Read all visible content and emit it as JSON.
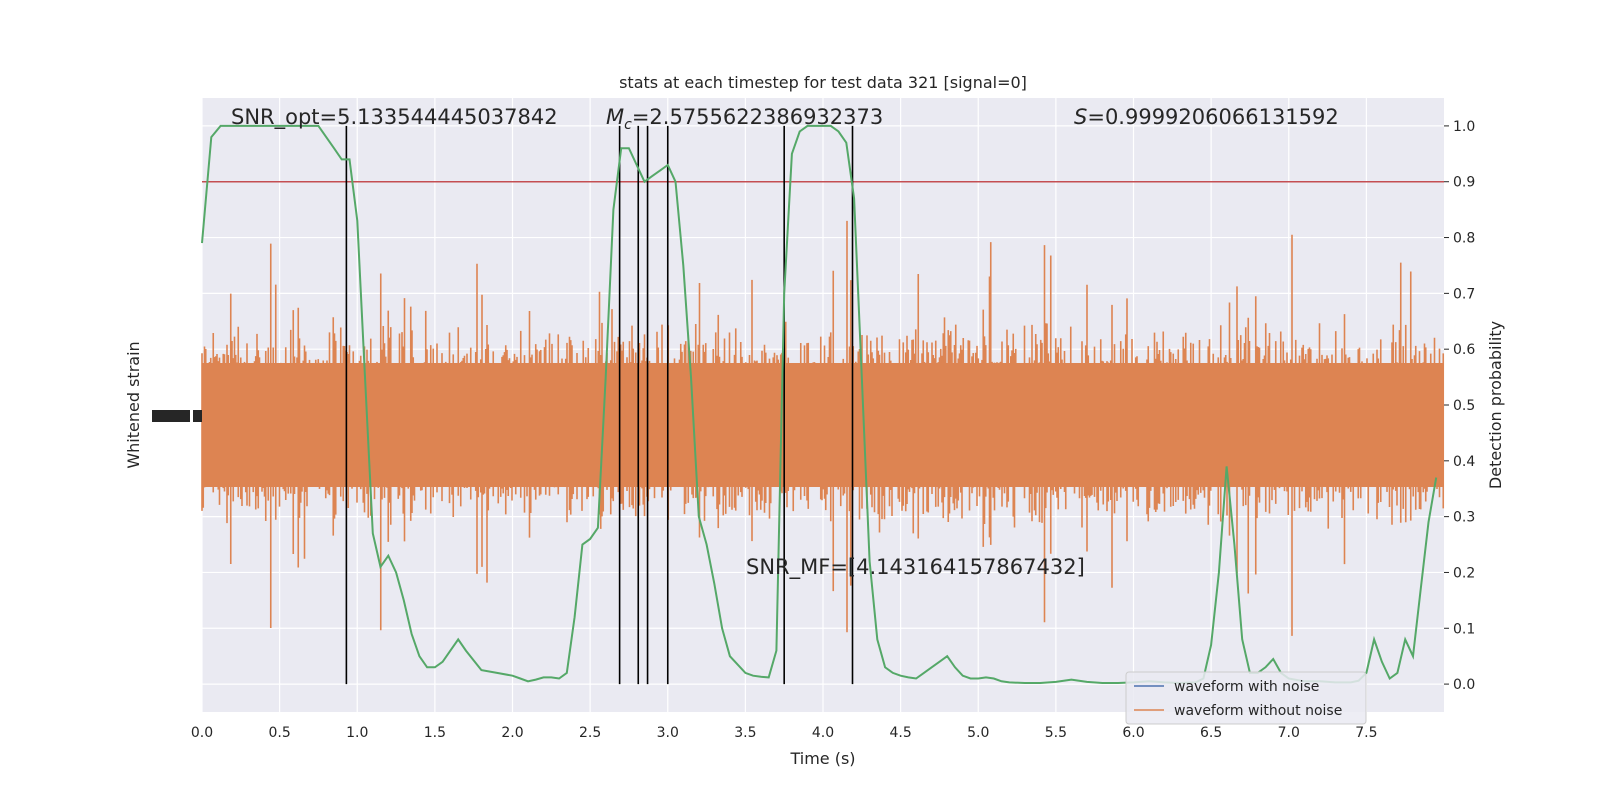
{
  "chart_data": {
    "type": "line",
    "title": "stats at each timestep for test data 321 [signal=0]",
    "xlabel": "Time (s)",
    "ylabel_left": "Whitened strain",
    "ylabel_right": "Detection probability",
    "xlim": [
      0,
      8
    ],
    "ylim_right": [
      -0.05,
      1.05
    ],
    "x_ticks": [
      "0.0",
      "0.5",
      "1.0",
      "1.5",
      "2.0",
      "2.5",
      "3.0",
      "3.5",
      "4.0",
      "4.5",
      "5.0",
      "5.5",
      "6.0",
      "6.5",
      "7.0",
      "7.5"
    ],
    "y_ticks_right": [
      "0.0",
      "0.1",
      "0.2",
      "0.3",
      "0.4",
      "0.5",
      "0.6",
      "0.7",
      "0.8",
      "0.9",
      "1.0"
    ],
    "grid": true,
    "annotations": {
      "snr_opt": "SNR_opt=5.133544445037842",
      "mc_symbol": "M",
      "mc_sub": "c",
      "mc_value": "=2.5755622386932373",
      "s_symbol": "S",
      "s_value": "=0.9999206066131592",
      "snr_mf": "SNR_MF=[4.143164157867432]"
    },
    "threshold": 0.9,
    "vertical_lines_s": [
      0.93,
      2.69,
      2.81,
      2.87,
      3.0,
      3.75,
      4.19
    ],
    "series": [
      {
        "name": "waveform with noise",
        "color": "#4c72b0"
      },
      {
        "name": "waveform without noise",
        "color": "#dd8452"
      }
    ],
    "detection_probability": {
      "color": "#55a868",
      "x": [
        0.0,
        0.06,
        0.12,
        0.2,
        0.3,
        0.45,
        0.6,
        0.75,
        0.8,
        0.85,
        0.9,
        0.95,
        1.0,
        1.05,
        1.1,
        1.15,
        1.2,
        1.25,
        1.3,
        1.35,
        1.4,
        1.45,
        1.5,
        1.55,
        1.6,
        1.65,
        1.7,
        1.8,
        1.9,
        2.0,
        2.05,
        2.1,
        2.15,
        2.2,
        2.25,
        2.3,
        2.35,
        2.4,
        2.45,
        2.5,
        2.55,
        2.6,
        2.65,
        2.7,
        2.75,
        2.8,
        2.85,
        2.9,
        2.95,
        3.0,
        3.05,
        3.1,
        3.15,
        3.2,
        3.25,
        3.3,
        3.35,
        3.4,
        3.5,
        3.55,
        3.6,
        3.65,
        3.7,
        3.75,
        3.8,
        3.85,
        3.9,
        3.95,
        4.0,
        4.05,
        4.1,
        4.15,
        4.2,
        4.25,
        4.3,
        4.35,
        4.4,
        4.45,
        4.5,
        4.55,
        4.6,
        4.65,
        4.7,
        4.75,
        4.8,
        4.85,
        4.9,
        4.95,
        5.0,
        5.05,
        5.1,
        5.15,
        5.2,
        5.3,
        5.4,
        5.5,
        5.6,
        5.7,
        5.8,
        5.9,
        6.0,
        6.1,
        6.2,
        6.3,
        6.4,
        6.45,
        6.5,
        6.55,
        6.6,
        6.65,
        6.7,
        6.75,
        6.8,
        6.85,
        6.9,
        6.95,
        7.0,
        7.1,
        7.2,
        7.3,
        7.4,
        7.45,
        7.5,
        7.55,
        7.6,
        7.65,
        7.7,
        7.75,
        7.8,
        7.85,
        7.9,
        7.95
      ],
      "y": [
        0.79,
        0.98,
        1.0,
        1.0,
        1.0,
        1.0,
        1.0,
        1.0,
        0.98,
        0.96,
        0.94,
        0.94,
        0.83,
        0.55,
        0.27,
        0.21,
        0.23,
        0.2,
        0.15,
        0.09,
        0.05,
        0.03,
        0.03,
        0.04,
        0.06,
        0.08,
        0.06,
        0.025,
        0.02,
        0.015,
        0.01,
        0.005,
        0.008,
        0.012,
        0.012,
        0.01,
        0.02,
        0.12,
        0.25,
        0.26,
        0.28,
        0.55,
        0.85,
        0.96,
        0.96,
        0.93,
        0.9,
        0.91,
        0.92,
        0.93,
        0.9,
        0.75,
        0.55,
        0.3,
        0.25,
        0.18,
        0.1,
        0.05,
        0.02,
        0.015,
        0.013,
        0.012,
        0.06,
        0.7,
        0.95,
        0.99,
        1.0,
        1.0,
        1.0,
        1.0,
        0.99,
        0.97,
        0.87,
        0.55,
        0.22,
        0.08,
        0.03,
        0.02,
        0.015,
        0.012,
        0.01,
        0.02,
        0.03,
        0.04,
        0.05,
        0.03,
        0.015,
        0.01,
        0.01,
        0.012,
        0.01,
        0.005,
        0.003,
        0.002,
        0.002,
        0.004,
        0.008,
        0.004,
        0.002,
        0.002,
        0.003,
        0.005,
        0.003,
        0.002,
        0.003,
        0.01,
        0.07,
        0.2,
        0.39,
        0.25,
        0.08,
        0.02,
        0.02,
        0.03,
        0.045,
        0.02,
        0.01,
        0.005,
        0.005,
        0.003,
        0.003,
        0.006,
        0.02,
        0.08,
        0.04,
        0.01,
        0.02,
        0.08,
        0.05,
        0.17,
        0.29,
        0.37
      ]
    }
  }
}
